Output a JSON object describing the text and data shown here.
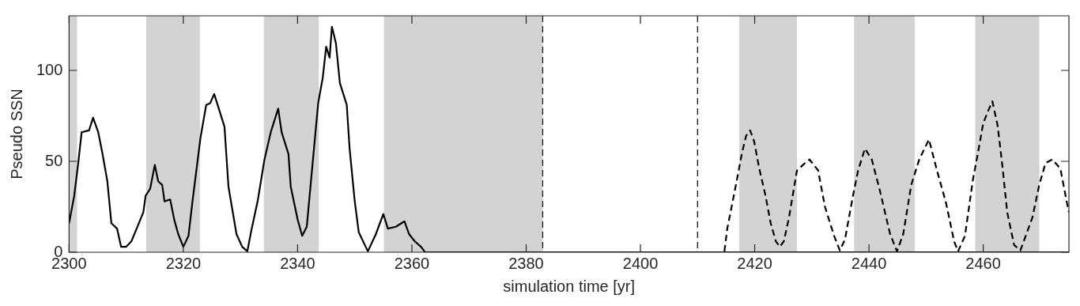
{
  "chart_data": {
    "type": "line",
    "xlabel": "simulation time [yr]",
    "ylabel": "Pseudo SSN",
    "xlim": [
      2300,
      2475
    ],
    "xticks": [
      2300,
      2320,
      2340,
      2360,
      2380,
      2400,
      2420,
      2440,
      2460
    ],
    "ylim": [
      0,
      130
    ],
    "yticks": [
      0,
      50,
      100
    ],
    "grid": false,
    "legend": false,
    "marker": "none",
    "series": [
      {
        "color": "#000000",
        "line_style": "solid",
        "x": [
          2300,
          2300.9,
          2301.6,
          2302.2,
          2303.5,
          2304.2,
          2305.1,
          2305.8,
          2306.7,
          2307.4,
          2308.4,
          2309.1,
          2310,
          2310.9,
          2311.7,
          2313,
          2313.4,
          2314.2,
          2315,
          2315.6,
          2316.3,
          2316.7,
          2317.7,
          2318.4,
          2319.1,
          2320,
          2320.9,
          2321.6,
          2323,
          2324,
          2324.7,
          2325.4,
          2326,
          2327.2,
          2327.9,
          2329.3,
          2330.3,
          2331.2,
          2331.9,
          2333,
          2334.2,
          2335.3,
          2336.6,
          2337.2,
          2338.4,
          2338.8,
          2340,
          2340.8,
          2341.6,
          2342.6,
          2343.6,
          2344.4,
          2345,
          2345.6,
          2346,
          2346.7,
          2347.4,
          2348.6,
          2349.1,
          2350,
          2350.7,
          2352.3,
          2353.7,
          2355,
          2355.8,
          2357.2,
          2358.7,
          2359.5,
          2360.5,
          2361.6,
          2362.3,
          2475
        ],
        "values": [
          16,
          31,
          49,
          66,
          67,
          74,
          66,
          55,
          39,
          16,
          13,
          3,
          3,
          6,
          12,
          22,
          31,
          35,
          48,
          39,
          37,
          28,
          29,
          18,
          10,
          3,
          9,
          28,
          63,
          81,
          82,
          87,
          81,
          69,
          36,
          10,
          3,
          0.5,
          12,
          28,
          51,
          66,
          79,
          66,
          54,
          36,
          18,
          9,
          14,
          48,
          82,
          96,
          113,
          107,
          124,
          115,
          93,
          81,
          57,
          28,
          11,
          0.5,
          10,
          21,
          13,
          14,
          17,
          10,
          6,
          3,
          0,
          0
        ]
      },
      {
        "color": "#000000",
        "line_style": "dashed",
        "x": [
          2414.7,
          2415.2,
          2415.9,
          2416.9,
          2417.8,
          2418.5,
          2419.2,
          2419.9,
          2420.8,
          2421.9,
          2422.8,
          2423.7,
          2424.4,
          2425.1,
          2426,
          2427.4,
          2428.8,
          2429.6,
          2431.1,
          2432.3,
          2433.9,
          2434.9,
          2435.8,
          2437.2,
          2438.1,
          2439.3,
          2440.5,
          2441.9,
          2443.7,
          2444.9,
          2446,
          2447.4,
          2448.8,
          2450.5,
          2451.9,
          2453.5,
          2454.9,
          2455.6,
          2456.8,
          2458.2,
          2459.1,
          2460,
          2460.9,
          2461.6,
          2462.5,
          2463.3,
          2464.2,
          2465.4,
          2466.5,
          2468.6,
          2469.8,
          2470.9,
          2472.1,
          2473.5,
          2474.6,
          2475
        ],
        "values": [
          0.5,
          13,
          24,
          40,
          55,
          64,
          67,
          61,
          46,
          31,
          16,
          6,
          3,
          6,
          19,
          45,
          49,
          51,
          45,
          25,
          9,
          1,
          7,
          31,
          45,
          57,
          51,
          34,
          10,
          0.5,
          10,
          37,
          51,
          62,
          45,
          27,
          6,
          0.5,
          9,
          40,
          55,
          71,
          78,
          83,
          70,
          49,
          22,
          4,
          1,
          19,
          37,
          49,
          51,
          46,
          28,
          22
        ]
      }
    ],
    "bands": [
      {
        "axis": "x",
        "from": 2300,
        "to": 2301.4,
        "color": "#d3d3d3"
      },
      {
        "axis": "x",
        "from": 2313.5,
        "to": 2322.9,
        "color": "#d3d3d3"
      },
      {
        "axis": "x",
        "from": 2334.1,
        "to": 2343.7,
        "color": "#d3d3d3"
      },
      {
        "axis": "x",
        "from": 2355.1,
        "to": 2382.9,
        "color": "#d3d3d3"
      },
      {
        "axis": "x",
        "from": 2417.3,
        "to": 2427.4,
        "color": "#d3d3d3"
      },
      {
        "axis": "x",
        "from": 2437.4,
        "to": 2448,
        "color": "#d3d3d3"
      },
      {
        "axis": "x",
        "from": 2458.6,
        "to": 2469.8,
        "color": "#d3d3d3"
      }
    ],
    "ref_lines": [
      {
        "axis": "x",
        "value": 2382.9,
        "color": "#000000",
        "line_style": "dashed"
      },
      {
        "axis": "x",
        "value": 2410,
        "color": "#000000",
        "line_style": "dashed"
      }
    ]
  }
}
